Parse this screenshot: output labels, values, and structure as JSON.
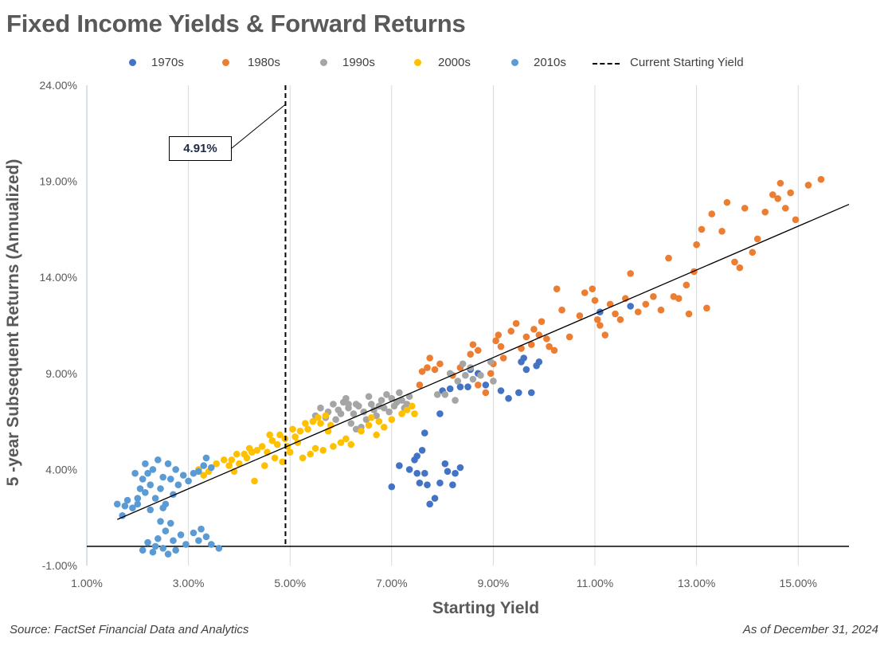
{
  "title": "Fixed Income Yields & Forward Returns",
  "source": "Source: FactSet Financial Data and Analytics",
  "as_of": "As of December 31, 2024",
  "chart_data": {
    "type": "scatter",
    "title": "Fixed Income Yields & Forward Returns",
    "xlabel": "Starting Yield",
    "ylabel": "5 -year Subsequent Returns (Annualized)",
    "xlim": [
      1.0,
      16.0
    ],
    "ylim": [
      -1.0,
      24.0
    ],
    "x_ticks": [
      1,
      3,
      5,
      7,
      9,
      11,
      13,
      15
    ],
    "x_tick_labels": [
      "1.00%",
      "3.00%",
      "5.00%",
      "7.00%",
      "9.00%",
      "11.00%",
      "13.00%",
      "15.00%"
    ],
    "y_ticks": [
      -1,
      4,
      9,
      14,
      19,
      24
    ],
    "y_tick_labels": [
      "-1.00%",
      "4.00%",
      "9.00%",
      "14.00%",
      "19.00%",
      "24.00%"
    ],
    "grid": {
      "vertical": true,
      "horizontal": false
    },
    "legend_position": "top",
    "zero_line": 0,
    "series": [
      {
        "name": "1970s",
        "color": "#4472C4",
        "points": [
          [
            7.0,
            3.1
          ],
          [
            7.15,
            4.2
          ],
          [
            7.35,
            4.0
          ],
          [
            7.45,
            4.5
          ],
          [
            7.5,
            3.8
          ],
          [
            7.55,
            3.3
          ],
          [
            7.5,
            4.7
          ],
          [
            7.6,
            5.0
          ],
          [
            7.65,
            3.8
          ],
          [
            7.7,
            3.2
          ],
          [
            7.75,
            2.2
          ],
          [
            7.85,
            2.5
          ],
          [
            7.95,
            3.3
          ],
          [
            8.05,
            4.3
          ],
          [
            8.1,
            3.9
          ],
          [
            8.2,
            3.2
          ],
          [
            8.25,
            3.8
          ],
          [
            8.35,
            4.1
          ],
          [
            7.65,
            5.9
          ],
          [
            7.95,
            6.9
          ],
          [
            8.0,
            8.1
          ],
          [
            8.15,
            8.2
          ],
          [
            8.35,
            8.3
          ],
          [
            8.5,
            8.3
          ],
          [
            8.55,
            9.2
          ],
          [
            8.85,
            8.4
          ],
          [
            9.15,
            8.1
          ],
          [
            9.3,
            7.7
          ],
          [
            9.5,
            8.0
          ],
          [
            9.55,
            9.6
          ],
          [
            9.75,
            8.0
          ],
          [
            9.85,
            9.4
          ],
          [
            9.9,
            9.6
          ],
          [
            9.65,
            9.2
          ],
          [
            8.7,
            9.0
          ],
          [
            11.1,
            12.2
          ],
          [
            11.7,
            12.5
          ],
          [
            9.6,
            9.8
          ]
        ]
      },
      {
        "name": "1980s",
        "color": "#ED7D31",
        "points": [
          [
            7.55,
            8.4
          ],
          [
            7.6,
            9.1
          ],
          [
            7.7,
            9.3
          ],
          [
            7.75,
            9.8
          ],
          [
            7.85,
            9.2
          ],
          [
            7.95,
            9.5
          ],
          [
            8.2,
            8.9
          ],
          [
            8.35,
            9.3
          ],
          [
            8.55,
            10.0
          ],
          [
            8.6,
            10.5
          ],
          [
            8.7,
            10.2
          ],
          [
            8.85,
            8.0
          ],
          [
            8.95,
            9.0
          ],
          [
            9.0,
            9.5
          ],
          [
            9.05,
            10.7
          ],
          [
            9.1,
            11.0
          ],
          [
            9.15,
            10.4
          ],
          [
            9.2,
            9.8
          ],
          [
            9.35,
            11.2
          ],
          [
            9.45,
            11.6
          ],
          [
            9.55,
            10.3
          ],
          [
            9.65,
            10.9
          ],
          [
            9.75,
            10.5
          ],
          [
            9.9,
            11.0
          ],
          [
            9.95,
            11.7
          ],
          [
            10.05,
            10.8
          ],
          [
            10.1,
            10.4
          ],
          [
            10.2,
            10.2
          ],
          [
            10.35,
            12.3
          ],
          [
            10.5,
            10.9
          ],
          [
            10.7,
            12.0
          ],
          [
            10.8,
            13.2
          ],
          [
            11.0,
            12.8
          ],
          [
            11.1,
            11.5
          ],
          [
            11.2,
            11.0
          ],
          [
            11.3,
            12.6
          ],
          [
            11.4,
            12.1
          ],
          [
            11.5,
            11.8
          ],
          [
            11.6,
            12.9
          ],
          [
            11.7,
            14.2
          ],
          [
            11.85,
            12.2
          ],
          [
            12.0,
            12.6
          ],
          [
            12.15,
            13.0
          ],
          [
            12.3,
            12.3
          ],
          [
            12.45,
            15.0
          ],
          [
            12.65,
            12.9
          ],
          [
            12.85,
            12.1
          ],
          [
            12.95,
            14.3
          ],
          [
            13.0,
            15.7
          ],
          [
            13.1,
            16.5
          ],
          [
            13.3,
            17.3
          ],
          [
            13.5,
            16.4
          ],
          [
            13.6,
            17.9
          ],
          [
            13.85,
            14.5
          ],
          [
            13.95,
            17.6
          ],
          [
            14.1,
            15.3
          ],
          [
            14.2,
            16.0
          ],
          [
            14.35,
            17.4
          ],
          [
            14.5,
            18.3
          ],
          [
            14.65,
            18.9
          ],
          [
            14.75,
            17.6
          ],
          [
            14.85,
            18.4
          ],
          [
            14.95,
            17.0
          ],
          [
            15.2,
            18.8
          ],
          [
            15.45,
            19.1
          ],
          [
            12.8,
            13.6
          ],
          [
            13.2,
            12.4
          ],
          [
            13.75,
            14.8
          ],
          [
            14.6,
            18.1
          ],
          [
            11.05,
            11.8
          ],
          [
            10.95,
            13.4
          ],
          [
            12.55,
            13.0
          ],
          [
            8.7,
            8.4
          ],
          [
            9.8,
            11.3
          ],
          [
            10.25,
            13.4
          ]
        ]
      },
      {
        "name": "1990s",
        "color": "#A5A5A5",
        "points": [
          [
            5.5,
            6.8
          ],
          [
            5.6,
            7.2
          ],
          [
            5.7,
            6.7
          ],
          [
            5.75,
            7.0
          ],
          [
            5.85,
            7.4
          ],
          [
            5.95,
            7.1
          ],
          [
            6.0,
            6.9
          ],
          [
            6.05,
            7.5
          ],
          [
            6.1,
            7.7
          ],
          [
            6.15,
            7.2
          ],
          [
            6.2,
            6.4
          ],
          [
            6.25,
            6.9
          ],
          [
            6.3,
            7.4
          ],
          [
            6.35,
            7.3
          ],
          [
            6.4,
            6.2
          ],
          [
            6.45,
            7.0
          ],
          [
            6.5,
            6.6
          ],
          [
            6.55,
            7.8
          ],
          [
            6.6,
            7.4
          ],
          [
            6.65,
            7.1
          ],
          [
            6.7,
            6.8
          ],
          [
            6.75,
            7.3
          ],
          [
            6.8,
            7.6
          ],
          [
            6.85,
            7.2
          ],
          [
            6.9,
            7.9
          ],
          [
            6.95,
            7.0
          ],
          [
            7.0,
            7.7
          ],
          [
            7.05,
            7.3
          ],
          [
            7.1,
            7.5
          ],
          [
            7.15,
            8.0
          ],
          [
            7.2,
            7.6
          ],
          [
            7.25,
            7.2
          ],
          [
            7.3,
            7.4
          ],
          [
            7.35,
            7.8
          ],
          [
            8.15,
            9.0
          ],
          [
            8.3,
            8.6
          ],
          [
            8.45,
            8.9
          ],
          [
            8.6,
            8.7
          ],
          [
            8.75,
            8.9
          ],
          [
            9.0,
            8.6
          ],
          [
            8.4,
            9.5
          ],
          [
            8.55,
            9.3
          ],
          [
            8.95,
            9.6
          ],
          [
            8.25,
            7.6
          ],
          [
            8.05,
            7.9
          ],
          [
            7.9,
            7.9
          ],
          [
            6.15,
            7.4
          ],
          [
            5.9,
            6.6
          ],
          [
            6.3,
            6.1
          ]
        ]
      },
      {
        "name": "2000s",
        "color": "#FFC000",
        "points": [
          [
            3.2,
            4.0
          ],
          [
            3.4,
            3.9
          ],
          [
            3.55,
            4.3
          ],
          [
            3.7,
            4.5
          ],
          [
            3.8,
            4.2
          ],
          [
            3.85,
            4.5
          ],
          [
            3.95,
            4.8
          ],
          [
            4.0,
            4.3
          ],
          [
            4.1,
            4.8
          ],
          [
            4.15,
            4.6
          ],
          [
            4.25,
            4.9
          ],
          [
            4.35,
            5.0
          ],
          [
            4.45,
            5.2
          ],
          [
            4.55,
            4.9
          ],
          [
            4.65,
            5.5
          ],
          [
            4.75,
            5.3
          ],
          [
            4.8,
            5.8
          ],
          [
            4.9,
            5.6
          ],
          [
            4.95,
            5.2
          ],
          [
            5.05,
            6.1
          ],
          [
            5.1,
            5.7
          ],
          [
            5.2,
            6.0
          ],
          [
            5.3,
            6.4
          ],
          [
            5.35,
            6.1
          ],
          [
            5.45,
            6.5
          ],
          [
            5.55,
            6.7
          ],
          [
            5.6,
            6.4
          ],
          [
            5.7,
            6.8
          ],
          [
            5.8,
            6.3
          ],
          [
            3.3,
            3.7
          ],
          [
            3.9,
            3.9
          ],
          [
            4.3,
            3.4
          ],
          [
            4.5,
            4.2
          ],
          [
            4.7,
            4.6
          ],
          [
            4.85,
            4.4
          ],
          [
            5.0,
            4.9
          ],
          [
            5.25,
            4.6
          ],
          [
            5.4,
            4.8
          ],
          [
            5.5,
            5.1
          ],
          [
            5.65,
            5.0
          ],
          [
            5.85,
            5.2
          ],
          [
            6.0,
            5.4
          ],
          [
            6.1,
            5.6
          ],
          [
            6.2,
            5.3
          ],
          [
            6.4,
            6.0
          ],
          [
            6.55,
            6.3
          ],
          [
            6.7,
            5.8
          ],
          [
            6.85,
            6.2
          ],
          [
            7.0,
            6.6
          ],
          [
            7.2,
            6.9
          ],
          [
            7.3,
            7.1
          ],
          [
            7.4,
            7.3
          ],
          [
            7.45,
            6.9
          ],
          [
            6.6,
            6.7
          ],
          [
            6.75,
            6.5
          ],
          [
            5.15,
            5.4
          ],
          [
            4.6,
            5.8
          ],
          [
            4.2,
            5.1
          ],
          [
            5.75,
            6.0
          ]
        ]
      },
      {
        "name": "2010s",
        "color": "#5B9BD5",
        "points": [
          [
            1.6,
            2.2
          ],
          [
            1.7,
            1.6
          ],
          [
            1.75,
            2.1
          ],
          [
            1.8,
            2.4
          ],
          [
            1.9,
            2.0
          ],
          [
            2.0,
            2.5
          ],
          [
            2.05,
            3.0
          ],
          [
            2.1,
            3.5
          ],
          [
            2.15,
            2.8
          ],
          [
            2.2,
            3.8
          ],
          [
            2.25,
            3.2
          ],
          [
            2.3,
            4.0
          ],
          [
            2.35,
            2.5
          ],
          [
            2.4,
            4.5
          ],
          [
            2.45,
            3.0
          ],
          [
            2.5,
            3.6
          ],
          [
            2.55,
            2.2
          ],
          [
            2.6,
            4.3
          ],
          [
            2.65,
            3.5
          ],
          [
            2.7,
            2.7
          ],
          [
            2.75,
            4.0
          ],
          [
            2.8,
            3.2
          ],
          [
            2.9,
            3.7
          ],
          [
            3.0,
            3.4
          ],
          [
            3.1,
            3.8
          ],
          [
            3.2,
            3.9
          ],
          [
            3.3,
            4.2
          ],
          [
            3.35,
            4.6
          ],
          [
            3.45,
            4.1
          ],
          [
            2.3,
            -0.3
          ],
          [
            2.4,
            0.4
          ],
          [
            2.5,
            -0.1
          ],
          [
            2.55,
            0.8
          ],
          [
            2.6,
            -0.4
          ],
          [
            2.65,
            1.2
          ],
          [
            2.7,
            0.3
          ],
          [
            2.75,
            -0.2
          ],
          [
            2.85,
            0.6
          ],
          [
            2.95,
            0.1
          ],
          [
            3.1,
            0.7
          ],
          [
            3.2,
            0.3
          ],
          [
            3.25,
            0.9
          ],
          [
            3.35,
            0.5
          ],
          [
            3.45,
            0.1
          ],
          [
            3.6,
            -0.1
          ],
          [
            2.2,
            0.2
          ],
          [
            2.35,
            0.0
          ],
          [
            2.45,
            1.3
          ],
          [
            2.1,
            -0.2
          ],
          [
            2.0,
            2.2
          ],
          [
            2.25,
            1.9
          ],
          [
            2.5,
            2.0
          ],
          [
            2.15,
            4.3
          ],
          [
            1.95,
            3.8
          ]
        ]
      }
    ],
    "current_starting_yield": {
      "label": "Current Starting Yield",
      "x": 4.91,
      "value_label": "4.91%"
    },
    "trendline": {
      "x": [
        1.6,
        16.0
      ],
      "y": [
        1.4,
        17.8
      ]
    }
  }
}
